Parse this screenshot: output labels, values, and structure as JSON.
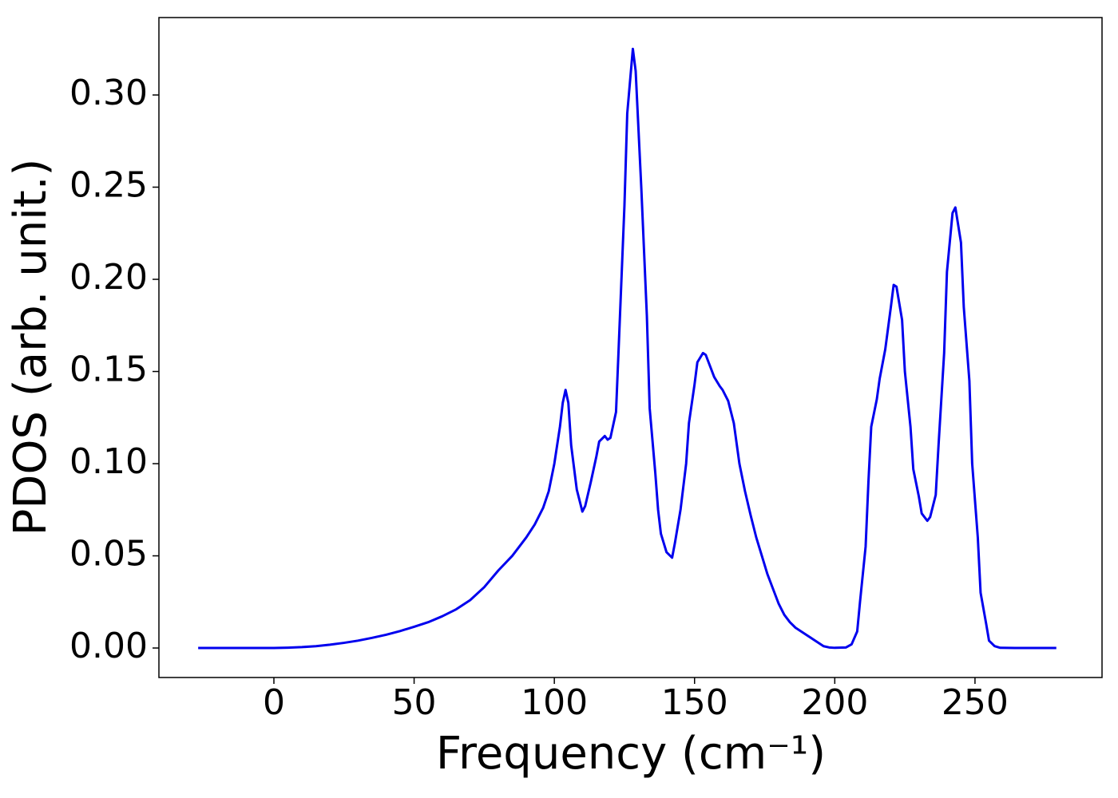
{
  "chart_data": {
    "type": "line",
    "xlabel": "Frequency (cm⁻¹)",
    "ylabel": "PDOS (arb. unit.)",
    "xlim": [
      -41,
      295.3
    ],
    "ylim": [
      -0.016,
      0.342
    ],
    "xticks": [
      0,
      50,
      100,
      150,
      200,
      250
    ],
    "yticks": [
      {
        "value": 0,
        "label": "0.00"
      },
      {
        "value": 0.05,
        "label": "0.05"
      },
      {
        "value": 0.1,
        "label": "0.10"
      },
      {
        "value": 0.15,
        "label": "0.15"
      },
      {
        "value": 0.2,
        "label": "0.20"
      },
      {
        "value": 0.25,
        "label": "0.25"
      },
      {
        "value": 0.3,
        "label": "0.30"
      }
    ],
    "series": [
      {
        "color": "#0000ee",
        "x": [
          -27,
          -10,
          0,
          5,
          10,
          15,
          20,
          25,
          30,
          35,
          40,
          45,
          50,
          55,
          60,
          65,
          70,
          75,
          80,
          85,
          90,
          93,
          96,
          98,
          100,
          102,
          103,
          104,
          105,
          106,
          108,
          110,
          111,
          113,
          115,
          116,
          118,
          119,
          120,
          122,
          123,
          125,
          126,
          128,
          129,
          131,
          133,
          134,
          136,
          137,
          138,
          140,
          142,
          143,
          145,
          147,
          148,
          150,
          151,
          153,
          154,
          155,
          157,
          159,
          160,
          162,
          164,
          166,
          168,
          170,
          172,
          174,
          176,
          178,
          180,
          182,
          184,
          186,
          190,
          194,
          196,
          198,
          200,
          204,
          206,
          208,
          209,
          211,
          212,
          213,
          215,
          216,
          218,
          220,
          221,
          222,
          224,
          225,
          227,
          228,
          230,
          231,
          233,
          234,
          236,
          237,
          239,
          240,
          242,
          243,
          245,
          246,
          248,
          249,
          251,
          252,
          254,
          255,
          257,
          259,
          265,
          279
        ],
        "values": [
          0,
          0,
          0,
          0.0002,
          0.0005,
          0.001,
          0.0018,
          0.0028,
          0.004,
          0.0055,
          0.0072,
          0.0092,
          0.0115,
          0.014,
          0.0172,
          0.021,
          0.026,
          0.033,
          0.042,
          0.05,
          0.06,
          0.067,
          0.076,
          0.085,
          0.1,
          0.12,
          0.133,
          0.14,
          0.133,
          0.11,
          0.086,
          0.074,
          0.077,
          0.09,
          0.104,
          0.112,
          0.115,
          0.113,
          0.114,
          0.128,
          0.165,
          0.24,
          0.29,
          0.325,
          0.313,
          0.25,
          0.18,
          0.13,
          0.095,
          0.075,
          0.062,
          0.052,
          0.049,
          0.057,
          0.075,
          0.1,
          0.122,
          0.143,
          0.155,
          0.16,
          0.159,
          0.155,
          0.147,
          0.142,
          0.14,
          0.134,
          0.122,
          0.1,
          0.085,
          0.072,
          0.06,
          0.05,
          0.04,
          0.032,
          0.024,
          0.018,
          0.014,
          0.011,
          0.007,
          0.003,
          0.001,
          0.0003,
          0.0001,
          0.0003,
          0.002,
          0.009,
          0.025,
          0.055,
          0.09,
          0.12,
          0.135,
          0.146,
          0.162,
          0.185,
          0.197,
          0.196,
          0.178,
          0.15,
          0.12,
          0.097,
          0.082,
          0.073,
          0.069,
          0.071,
          0.083,
          0.11,
          0.16,
          0.204,
          0.236,
          0.239,
          0.22,
          0.185,
          0.145,
          0.1,
          0.06,
          0.03,
          0.013,
          0.004,
          0.001,
          0.0001,
          0,
          0
        ]
      }
    ]
  }
}
